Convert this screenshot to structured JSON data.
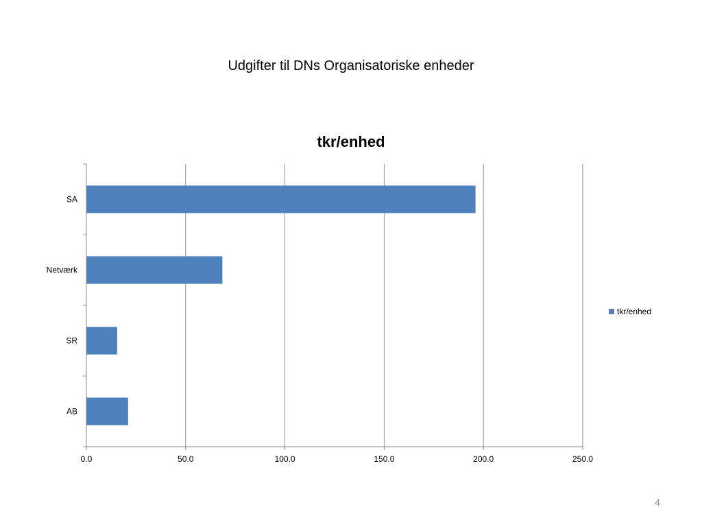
{
  "slide": {
    "title": "Udgifter til DNs Organisatoriske enheder",
    "page_number": "4"
  },
  "colors": {
    "bar": "#4f81bd",
    "grid": "#8c8c8c",
    "axis": "#8c8c8c"
  },
  "chart_data": {
    "type": "bar",
    "orientation": "horizontal",
    "title": "tkr/enhed",
    "xlabel": "",
    "ylabel": "",
    "categories": [
      "SA",
      "Netværk",
      "SR",
      "AB"
    ],
    "series": [
      {
        "name": "tkr/enhed",
        "values": [
          196.0,
          68.5,
          15.5,
          21.0
        ]
      }
    ],
    "xlim": [
      0,
      250
    ],
    "x_ticks": [
      "0.0",
      "50.0",
      "100.0",
      "150.0",
      "200.0",
      "250.0"
    ],
    "x_tick_values": [
      0,
      50,
      100,
      150,
      200,
      250
    ],
    "grid": "vertical major gridlines",
    "legend": "right"
  }
}
